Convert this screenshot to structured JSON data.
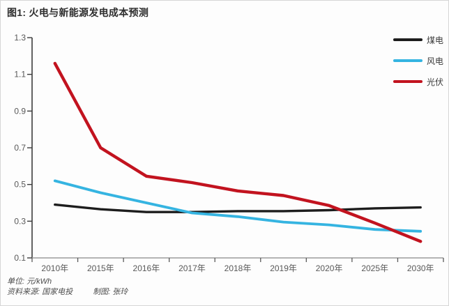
{
  "title": "图1: 火电与新能源发电成本预测",
  "footer": {
    "unit": "单位: 元/kWh",
    "source": "资料来源: 国家电投",
    "credit": "制图: 张玲"
  },
  "colors": {
    "coal": "#1d1d1d",
    "wind": "#35b4e1",
    "solar": "#c2131f",
    "y_axis": "#3c3c3c",
    "x_axis": "#9b9b9b",
    "tick_label": "#585858"
  },
  "chart_data": {
    "type": "line",
    "categories": [
      "2010年",
      "2015年",
      "2016年",
      "2017年",
      "2018年",
      "2019年",
      "2020年",
      "2025年",
      "2030年"
    ],
    "series": [
      {
        "name": "煤电",
        "color": "#1d1d1d",
        "values": [
          0.39,
          0.365,
          0.35,
          0.35,
          0.355,
          0.355,
          0.36,
          0.37,
          0.375
        ]
      },
      {
        "name": "风电",
        "color": "#35b4e1",
        "values": [
          0.52,
          0.455,
          0.4,
          0.345,
          0.325,
          0.295,
          0.28,
          0.255,
          0.245
        ]
      },
      {
        "name": "光伏",
        "color": "#c2131f",
        "values": [
          1.16,
          0.7,
          0.545,
          0.51,
          0.465,
          0.44,
          0.385,
          0.29,
          0.19
        ]
      }
    ],
    "ylim": [
      0.1,
      1.3
    ],
    "yticks": [
      1.3,
      1.1,
      0.9,
      0.7,
      0.5,
      0.3,
      0.1
    ],
    "xlabel": "",
    "ylabel": "",
    "grid": false,
    "legend_position": "top-right"
  }
}
